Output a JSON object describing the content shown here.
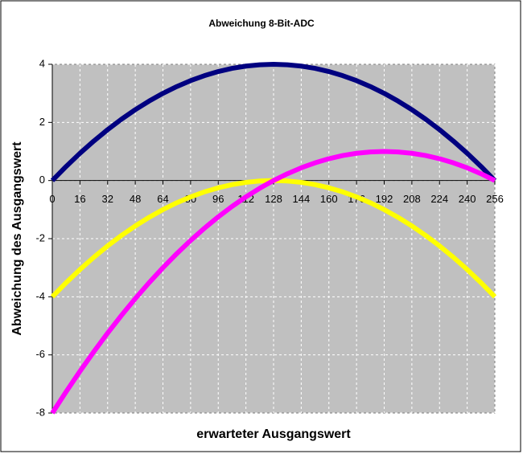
{
  "chart_data": {
    "type": "line",
    "title": "Abweichung 8-Bit-ADC",
    "x_label": "erwarteter Ausgangswert",
    "y_label": "Abweichung des Ausgangswert",
    "x": [
      0,
      8,
      16,
      24,
      32,
      40,
      48,
      56,
      64,
      72,
      80,
      88,
      96,
      104,
      112,
      120,
      128,
      136,
      144,
      152,
      160,
      168,
      176,
      184,
      192,
      200,
      208,
      216,
      224,
      232,
      240,
      248,
      256
    ],
    "series": [
      {
        "color": "#000080",
        "values": [
          0,
          0.484,
          0.9375,
          1.359,
          1.75,
          2.109,
          2.4375,
          2.734,
          3,
          3.234,
          3.4375,
          3.609,
          3.75,
          3.859,
          3.9375,
          3.984,
          4,
          3.984,
          3.9375,
          3.859,
          3.75,
          3.609,
          3.4375,
          3.234,
          3,
          2.734,
          2.4375,
          2.109,
          1.75,
          1.359,
          0.9375,
          0.484,
          0
        ]
      },
      {
        "color": "#ffff00",
        "values": [
          -4,
          -3.516,
          -3.0625,
          -2.641,
          -2.25,
          -1.891,
          -1.5625,
          -1.266,
          -1,
          -0.766,
          -0.5625,
          -0.391,
          -0.25,
          -0.141,
          -0.0625,
          -0.016,
          0,
          -0.016,
          -0.0625,
          -0.141,
          -0.25,
          -0.391,
          -0.5625,
          -0.766,
          -1,
          -1.266,
          -1.5625,
          -1.891,
          -2.25,
          -2.641,
          -3.0625,
          -3.516,
          -4
        ]
      },
      {
        "color": "#ff00ff",
        "values": [
          -8,
          -7.266,
          -6.5625,
          -5.891,
          -5.25,
          -4.641,
          -4.0625,
          -3.516,
          -3,
          -2.516,
          -2.0625,
          -1.641,
          -1.25,
          -0.891,
          -0.5625,
          -0.266,
          0,
          0.234,
          0.4375,
          0.609,
          0.75,
          0.859,
          0.9375,
          0.984,
          1,
          0.984,
          0.9375,
          0.859,
          0.75,
          0.609,
          0.4375,
          0.234,
          0
        ]
      }
    ],
    "xlim": [
      0,
      256
    ],
    "xticks": [
      0,
      16,
      32,
      48,
      64,
      80,
      96,
      112,
      128,
      144,
      160,
      176,
      192,
      208,
      224,
      240,
      256
    ],
    "ylim": [
      -8,
      4
    ],
    "yticks": [
      -8,
      -6,
      -4,
      -2,
      0,
      2,
      4
    ],
    "grid": true,
    "plot_background": "#c0c0c0"
  }
}
